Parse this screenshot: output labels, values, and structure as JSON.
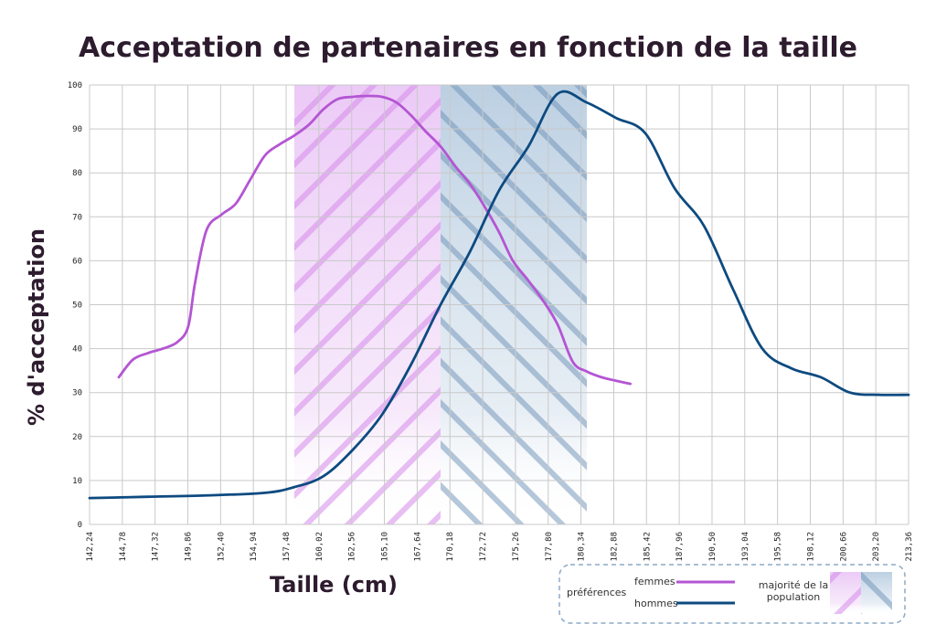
{
  "chart_data": {
    "type": "line",
    "title": "Acceptation de partenaires en fonction de la taille",
    "xlabel": "Taille (cm)",
    "ylabel": "% d'acceptation",
    "x_ticks": [
      "142.24",
      "144.78",
      "147.32",
      "149.86",
      "152.40",
      "154.94",
      "157.48",
      "160.02",
      "162.56",
      "165.10",
      "167.64",
      "170.18",
      "172.72",
      "175.26",
      "177.80",
      "180.34",
      "182.88",
      "185.42",
      "187.96",
      "190.50",
      "193.04",
      "195.58",
      "198.12",
      "200.66",
      "203.20",
      "213.36"
    ],
    "xlim": [
      142.24,
      213.36
    ],
    "ylim": [
      0,
      100
    ],
    "y_ticks": [
      0,
      10,
      20,
      30,
      40,
      50,
      60,
      70,
      80,
      90,
      100
    ],
    "grid": true,
    "series": [
      {
        "name": "femmes",
        "color": "#b455d3",
        "x": [
          144.78,
          146.0,
          147.32,
          148.6,
          149.86,
          150.8,
          151.4,
          152.4,
          153.7,
          154.94,
          156.2,
          157.48,
          158.75,
          160.02,
          161.3,
          162.56,
          163.8,
          165.1,
          166.4,
          167.64,
          168.9,
          170.18,
          171.4,
          172.72,
          174.0,
          175.26,
          176.5,
          177.8,
          179.0,
          180.34,
          181.6,
          182.88,
          184.2,
          185.42,
          186.7,
          187.96,
          189.2
        ],
        "y": [
          33.5,
          37.5,
          39.0,
          40.0,
          41.5,
          45.0,
          55.0,
          67.0,
          70.5,
          73.0,
          78.5,
          84.0,
          86.5,
          88.5,
          91.0,
          94.5,
          96.8,
          97.3,
          97.5,
          97.3,
          96.0,
          93.0,
          89.5,
          86.0,
          81.5,
          77.5,
          72.5,
          66.5,
          60.0,
          55.5,
          51.0,
          45.5,
          37.0,
          34.8,
          33.5,
          32.7,
          32.0
        ]
      },
      {
        "name": "hommes",
        "color": "#0d4a80",
        "x": [
          142.24,
          147.32,
          152.4,
          157.48,
          160.02,
          162.56,
          165.1,
          167.64,
          170.18,
          172.72,
          175.26,
          177.8,
          180.34,
          182.88,
          185.42,
          187.96,
          190.5,
          193.04,
          195.58,
          198.12,
          200.66,
          203.2,
          205.74,
          208.28,
          210.82,
          213.36
        ],
        "y": [
          6.0,
          6.3,
          6.6,
          7.2,
          8.5,
          11.0,
          17.0,
          25.0,
          36.5,
          50.0,
          62.0,
          76.0,
          86.0,
          98.0,
          96.0,
          92.5,
          89.0,
          76.5,
          68.0,
          53.5,
          40.0,
          35.5,
          33.5,
          30.0,
          29.5,
          29.5
        ]
      }
    ],
    "highlight_bands": [
      {
        "series": "femmes",
        "x_start": 160.02,
        "x_end": 172.72,
        "color": "#d487e9"
      },
      {
        "series": "hommes",
        "x_start": 172.72,
        "x_end": 185.42,
        "color": "#7a9cc0"
      }
    ],
    "legend": {
      "heading": "préférences",
      "entries": [
        "femmes",
        "hommes"
      ],
      "band_label_line1": "majorité de la",
      "band_label_line2": "population",
      "position": "bottom-right"
    }
  }
}
